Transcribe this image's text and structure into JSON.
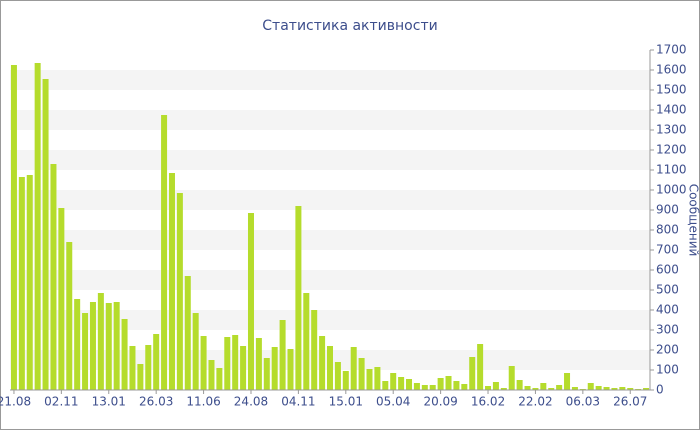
{
  "chart_data": {
    "type": "bar",
    "title": "Статистика активности",
    "y_label": "Сообщений",
    "categories": [
      "21.08",
      null,
      null,
      null,
      null,
      null,
      "02.11",
      null,
      null,
      null,
      null,
      null,
      "13.01",
      null,
      null,
      null,
      null,
      null,
      "26.03",
      null,
      null,
      null,
      null,
      null,
      "11.06",
      null,
      null,
      null,
      null,
      null,
      "24.08",
      null,
      null,
      null,
      null,
      null,
      "04.11",
      null,
      null,
      null,
      null,
      null,
      "15.01",
      null,
      null,
      null,
      null,
      null,
      "05.04",
      null,
      null,
      null,
      null,
      null,
      "20.09",
      null,
      null,
      null,
      null,
      null,
      "16.02",
      null,
      null,
      null,
      null,
      null,
      "22.02",
      null,
      null,
      null,
      null,
      null,
      "06.03",
      null,
      null,
      null,
      null,
      null,
      "26.07",
      null,
      null
    ],
    "values": [
      1625,
      1065,
      1075,
      1635,
      1555,
      1130,
      910,
      740,
      455,
      385,
      440,
      485,
      435,
      440,
      355,
      220,
      130,
      225,
      280,
      1375,
      1085,
      985,
      570,
      385,
      270,
      150,
      110,
      265,
      275,
      220,
      885,
      260,
      160,
      215,
      350,
      205,
      920,
      485,
      400,
      270,
      220,
      140,
      95,
      215,
      160,
      105,
      115,
      45,
      85,
      65,
      55,
      35,
      25,
      25,
      60,
      70,
      45,
      30,
      165,
      230,
      20,
      40,
      10,
      120,
      50,
      20,
      10,
      35,
      10,
      25,
      85,
      15,
      5,
      35,
      20,
      15,
      10,
      15,
      10,
      5,
      10
    ],
    "color": "#b5dc2c",
    "ylim": [
      0,
      1700
    ],
    "yticks": [
      0,
      100,
      200,
      300,
      400,
      500,
      600,
      700,
      800,
      900,
      1000,
      1100,
      1200,
      1300,
      1400,
      1500,
      1600,
      1700
    ],
    "grid": true
  }
}
